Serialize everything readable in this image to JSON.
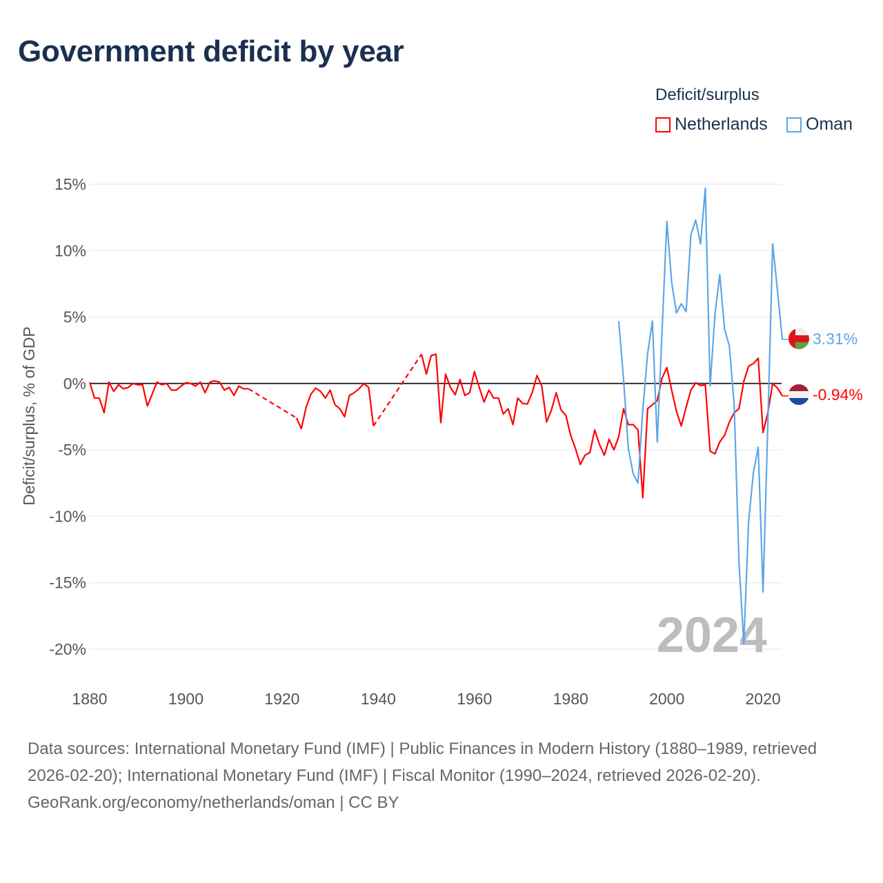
{
  "title": "Government deficit by year",
  "legend": {
    "title": "Deficit/surplus",
    "items": [
      {
        "name": "Netherlands",
        "color": "#ff0000"
      },
      {
        "name": "Oman",
        "color": "#5ca6e8"
      }
    ]
  },
  "year_watermark": "2024",
  "end_labels": {
    "oman": "3.31%",
    "netherlands": "-0.94%"
  },
  "footer": {
    "sources": "Data sources: International Monetary Fund (IMF) | Public Finances in Modern History (1880–1989, retrieved 2026-02-20); International Monetary Fund (IMF) | Fiscal Monitor (1990–2024, retrieved 2026-02-20).",
    "credit": "GeoRank.org/economy/netherlands/oman | CC BY"
  },
  "chart_data": {
    "type": "line",
    "title": "Government deficit by year",
    "xlabel": "",
    "ylabel": "Deficit/surplus, % of GDP",
    "xlim": [
      1880,
      2024
    ],
    "ylim": [
      -20,
      15
    ],
    "x_ticks": [
      1880,
      1900,
      1920,
      1940,
      1960,
      1980,
      2000,
      2020
    ],
    "x_tick_labels": [
      "1880",
      "1900",
      "1920",
      "1940",
      "1960",
      "1980",
      "2000",
      "2020"
    ],
    "y_ticks": [
      15,
      10,
      5,
      0,
      -5,
      -10,
      -15,
      -20
    ],
    "y_tick_labels": [
      "15%",
      "10%",
      "5%",
      "0%",
      "-5%",
      "-10%",
      "-15%",
      "-20%"
    ],
    "grid": true,
    "legend_position": "top-right",
    "series": [
      {
        "name": "Netherlands",
        "color": "#ff0000",
        "start_year": 1880,
        "values": [
          0.1,
          -1.1,
          -1.1,
          -2.2,
          0.1,
          -0.6,
          -0.1,
          -0.4,
          -0.3,
          0.0,
          -0.1,
          -0.1,
          -1.7,
          -0.8,
          0.1,
          -0.1,
          0.0,
          -0.5,
          -0.5,
          -0.2,
          0.05,
          0.0,
          -0.2,
          0.1,
          -0.7,
          0.1,
          0.2,
          0.1,
          -0.5,
          -0.3,
          -0.9,
          -0.2,
          -0.4,
          -0.4,
          null,
          null,
          null,
          null,
          null,
          null,
          null,
          null,
          null,
          -2.6,
          -3.4,
          -1.8,
          -0.8,
          -0.35,
          -0.6,
          -1.1,
          -0.5,
          -1.6,
          -1.9,
          -2.5,
          -0.9,
          -0.7,
          -0.4,
          0.0,
          -0.3,
          -3.2,
          null,
          null,
          null,
          null,
          null,
          null,
          null,
          null,
          null,
          2.2,
          0.7,
          2.1,
          2.2,
          -2.95,
          0.7,
          -0.3,
          -0.85,
          0.3,
          -0.9,
          -0.7,
          0.9,
          -0.3,
          -1.4,
          -0.5,
          -1.1,
          -1.1,
          -2.3,
          -1.9,
          -3.1,
          -1.1,
          -1.5,
          -1.55,
          -0.7,
          0.6,
          -0.2,
          -2.9,
          -2.0,
          -0.7,
          -2.0,
          -2.4,
          -3.9,
          -4.9,
          -6.1,
          -5.4,
          -5.2,
          -3.5,
          -4.6,
          -5.4,
          -4.2,
          -5.0,
          -4.0,
          -1.9,
          -3.1,
          -3.1,
          -3.5,
          -8.6,
          -1.9,
          -1.6,
          -1.3,
          0.4,
          1.2,
          -0.5,
          -2.1,
          -3.2,
          -1.8,
          -0.5,
          0.05,
          -0.15,
          -0.1,
          -5.1,
          -5.3,
          -4.4,
          -3.9,
          -2.9,
          -2.2,
          -1.9,
          0.15,
          1.3,
          1.5,
          1.9,
          -3.7,
          -2.2,
          0.0,
          -0.35,
          -0.94
        ]
      },
      {
        "name": "Oman",
        "color": "#5ca6e8",
        "start_year": 1990,
        "values": [
          4.7,
          0.3,
          -4.9,
          -6.8,
          -7.5,
          -2.0,
          2.25,
          4.7,
          -4.4,
          3.9,
          12.2,
          7.6,
          5.3,
          6.0,
          5.4,
          11.2,
          12.3,
          10.5,
          14.7,
          -0.2,
          5.2,
          8.2,
          4.1,
          2.8,
          -1.6,
          -13.5,
          -19.6,
          -10.4,
          -6.7,
          -4.8,
          -15.7,
          -3.0,
          10.5,
          7.0,
          3.31
        ]
      }
    ]
  }
}
